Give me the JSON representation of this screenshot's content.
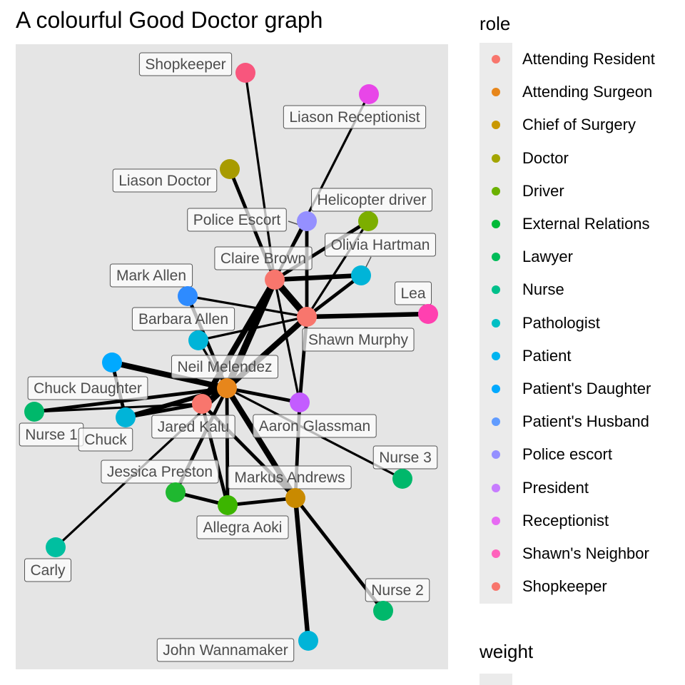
{
  "title": "A colourful Good Doctor graph",
  "legend_role": {
    "title": "role",
    "items": [
      {
        "label": "Attending Resident",
        "color": "#F8766D"
      },
      {
        "label": "Attending Surgeon",
        "color": "#E7861B"
      },
      {
        "label": "Chief of Surgery",
        "color": "#C99800"
      },
      {
        "label": "Doctor",
        "color": "#A3A500"
      },
      {
        "label": "Driver",
        "color": "#6BB100"
      },
      {
        "label": "External Relations",
        "color": "#00BA38"
      },
      {
        "label": "Lawyer",
        "color": "#00BC59"
      },
      {
        "label": "Nurse",
        "color": "#00C08B"
      },
      {
        "label": "Pathologist",
        "color": "#00BFC4"
      },
      {
        "label": "Patient",
        "color": "#00B4F0"
      },
      {
        "label": "Patient's Daughter",
        "color": "#00A9FF"
      },
      {
        "label": "Patient's Husband",
        "color": "#619CFF"
      },
      {
        "label": "Police escort",
        "color": "#9590FF"
      },
      {
        "label": "President",
        "color": "#C77CFF"
      },
      {
        "label": "Receptionist",
        "color": "#E76BF3"
      },
      {
        "label": "Shawn's Neighbor",
        "color": "#FF62BC"
      },
      {
        "label": "Shopkeeper",
        "color": "#F8766D"
      }
    ]
  },
  "legend_weight": {
    "title": "weight"
  },
  "nodes": [
    {
      "id": "shopkeeper",
      "label": "Shopkeeper",
      "color": "#F8567D"
    },
    {
      "id": "liason_receptionist",
      "label": "Liason Receptionist",
      "color": "#E846E8"
    },
    {
      "id": "liason_doctor",
      "label": "Liason Doctor",
      "color": "#A89B00"
    },
    {
      "id": "police_escort",
      "label": "Police Escort",
      "color": "#9590FF"
    },
    {
      "id": "helicopter_driver",
      "label": "Helicopter driver",
      "color": "#7CAE00"
    },
    {
      "id": "claire_brown",
      "label": "Claire Brown",
      "color": "#F8766D"
    },
    {
      "id": "olivia_hartman",
      "label": "Olivia Hartman",
      "color": "#00B4D8"
    },
    {
      "id": "mark_allen",
      "label": "Mark Allen",
      "color": "#2E8BFF"
    },
    {
      "id": "lea",
      "label": "Lea",
      "color": "#FF40B0"
    },
    {
      "id": "shawn_murphy",
      "label": "Shawn Murphy",
      "color": "#F8766D"
    },
    {
      "id": "barbara_allen",
      "label": "Barbara Allen",
      "color": "#00B4D8"
    },
    {
      "id": "neil_melendez",
      "label": "Neil Melendez",
      "color": "#E7861B"
    },
    {
      "id": "chuck_daughter",
      "label": "Chuck Daughter",
      "color": "#00A9FF"
    },
    {
      "id": "jared_kalu",
      "label": "Jared Kalu",
      "color": "#F8766D"
    },
    {
      "id": "aaron_glassman",
      "label": "Aaron Glassman",
      "color": "#C35CFF"
    },
    {
      "id": "nurse_1",
      "label": "Nurse 1",
      "color": "#00B86B"
    },
    {
      "id": "chuck",
      "label": "Chuck",
      "color": "#00B4D8"
    },
    {
      "id": "nurse_3",
      "label": "Nurse 3",
      "color": "#00B86B"
    },
    {
      "id": "jessica_preston",
      "label": "Jessica Preston",
      "color": "#1FB830"
    },
    {
      "id": "markus_andrews",
      "label": "Markus Andrews",
      "color": "#C98A00"
    },
    {
      "id": "allegra_aoki",
      "label": "Allegra Aoki",
      "color": "#3CB500"
    },
    {
      "id": "carly",
      "label": "Carly",
      "color": "#00BFA0"
    },
    {
      "id": "nurse_2",
      "label": "Nurse 2",
      "color": "#00B86B"
    },
    {
      "id": "john_wannamaker",
      "label": "John Wannamaker",
      "color": "#00B4D8"
    }
  ],
  "edges": [
    {
      "source": "shopkeeper",
      "target": "claire_brown",
      "weight": 2
    },
    {
      "source": "liason_receptionist",
      "target": "claire_brown",
      "weight": 2
    },
    {
      "source": "liason_doctor",
      "target": "claire_brown",
      "weight": 3
    },
    {
      "source": "police_escort",
      "target": "shawn_murphy",
      "weight": 3
    },
    {
      "source": "police_escort",
      "target": "claire_brown",
      "weight": 2
    },
    {
      "source": "helicopter_driver",
      "target": "claire_brown",
      "weight": 3
    },
    {
      "source": "helicopter_driver",
      "target": "shawn_murphy",
      "weight": 2
    },
    {
      "source": "olivia_hartman",
      "target": "claire_brown",
      "weight": 4
    },
    {
      "source": "olivia_hartman",
      "target": "shawn_murphy",
      "weight": 3
    },
    {
      "source": "mark_allen",
      "target": "shawn_murphy",
      "weight": 2
    },
    {
      "source": "mark_allen",
      "target": "neil_melendez",
      "weight": 3
    },
    {
      "source": "lea",
      "target": "shawn_murphy",
      "weight": 4
    },
    {
      "source": "claire_brown",
      "target": "shawn_murphy",
      "weight": 6
    },
    {
      "source": "claire_brown",
      "target": "neil_melendez",
      "weight": 6
    },
    {
      "source": "claire_brown",
      "target": "jared_kalu",
      "weight": 5
    },
    {
      "source": "claire_brown",
      "target": "aaron_glassman",
      "weight": 2
    },
    {
      "source": "shawn_murphy",
      "target": "neil_melendez",
      "weight": 5
    },
    {
      "source": "shawn_murphy",
      "target": "aaron_glassman",
      "weight": 3
    },
    {
      "source": "shawn_murphy",
      "target": "barbara_allen",
      "weight": 2
    },
    {
      "source": "barbara_allen",
      "target": "neil_melendez",
      "weight": 2
    },
    {
      "source": "chuck_daughter",
      "target": "neil_melendez",
      "weight": 5
    },
    {
      "source": "chuck_daughter",
      "target": "chuck",
      "weight": 3
    },
    {
      "source": "nurse_1",
      "target": "jared_kalu",
      "weight": 2
    },
    {
      "source": "nurse_1",
      "target": "neil_melendez",
      "weight": 3
    },
    {
      "source": "chuck",
      "target": "jared_kalu",
      "weight": 3
    },
    {
      "source": "chuck",
      "target": "neil_melendez",
      "weight": 4
    },
    {
      "source": "neil_melendez",
      "target": "jared_kalu",
      "weight": 4
    },
    {
      "source": "neil_melendez",
      "target": "aaron_glassman",
      "weight": 3
    },
    {
      "source": "neil_melendez",
      "target": "markus_andrews",
      "weight": 5
    },
    {
      "source": "neil_melendez",
      "target": "jessica_preston",
      "weight": 3
    },
    {
      "source": "neil_melendez",
      "target": "allegra_aoki",
      "weight": 3
    },
    {
      "source": "neil_melendez",
      "target": "carly",
      "weight": 2
    },
    {
      "source": "neil_melendez",
      "target": "nurse_3",
      "weight": 2
    },
    {
      "source": "jared_kalu",
      "target": "allegra_aoki",
      "weight": 3
    },
    {
      "source": "jared_kalu",
      "target": "markus_andrews",
      "weight": 3
    },
    {
      "source": "aaron_glassman",
      "target": "markus_andrews",
      "weight": 3
    },
    {
      "source": "jessica_preston",
      "target": "allegra_aoki",
      "weight": 3
    },
    {
      "source": "allegra_aoki",
      "target": "markus_andrews",
      "weight": 3
    },
    {
      "source": "markus_andrews",
      "target": "john_wannamaker",
      "weight": 4
    },
    {
      "source": "markus_andrews",
      "target": "nurse_2",
      "weight": 3
    }
  ]
}
